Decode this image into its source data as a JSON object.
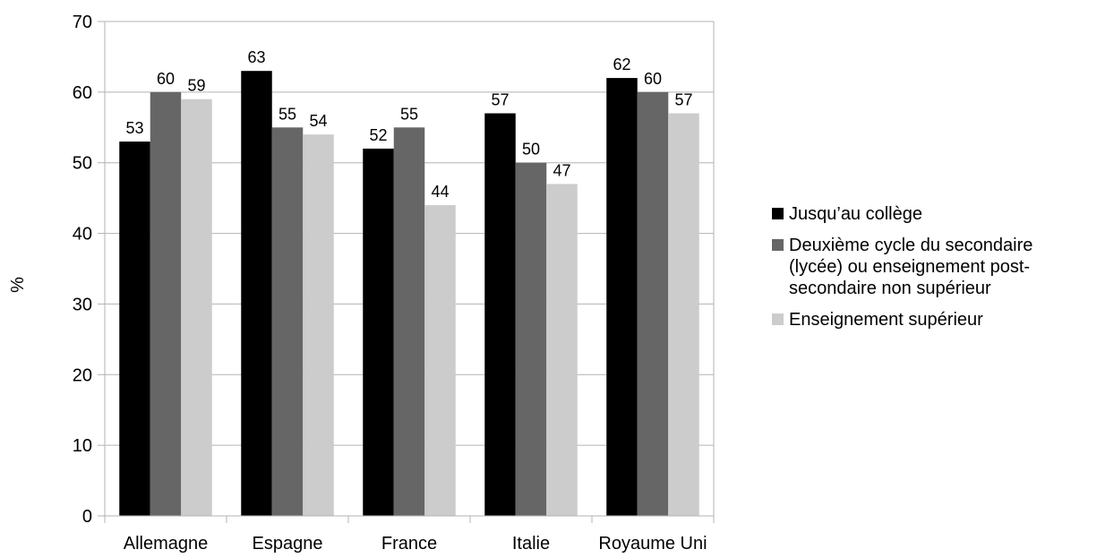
{
  "chart_data": {
    "type": "bar",
    "ylabel": "%",
    "ylim": [
      0,
      70
    ],
    "ytick_step": 10,
    "grid": true,
    "legend_position": "right",
    "categories": [
      "Allemagne",
      "Espagne",
      "France",
      "Italie",
      "Royaume Uni"
    ],
    "series": [
      {
        "name": "Jusqu’au collège",
        "color": "#000000",
        "values": [
          53,
          63,
          52,
          57,
          62
        ]
      },
      {
        "name": "Deuxième cycle du secondaire (lycée) ou enseignement post-secondaire non supérieur",
        "color": "#666666",
        "values": [
          60,
          55,
          55,
          50,
          60
        ]
      },
      {
        "name": "Enseignement supérieur",
        "color": "#cccccc",
        "values": [
          59,
          54,
          44,
          47,
          57
        ]
      }
    ],
    "legend_lines": [
      [
        "Jusqu’au collège"
      ],
      [
        "Deuxième cycle du secondaire",
        "(lycée) ou enseignement post-",
        "secondaire non supérieur"
      ],
      [
        "Enseignement supérieur"
      ]
    ]
  }
}
